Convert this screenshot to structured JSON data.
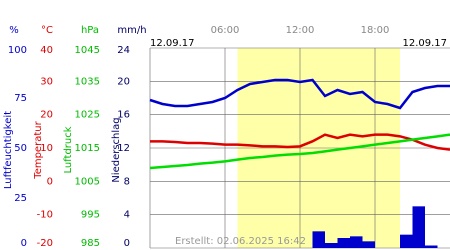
{
  "chart_data": {
    "type": "line",
    "date_left": "12.09.17",
    "date_right": "12.09.17",
    "footer": "Erstellt: 02.06.2025 16:42",
    "axis_units": [
      "%",
      "°C",
      "hPa",
      "mm/h"
    ],
    "axis_titles": [
      "Luftfeuchtigkeit",
      "Temperatur",
      "Luftdruck",
      "Niederschlag"
    ],
    "axis_colors": [
      "#0000cc",
      "#dd0000",
      "#00bb00",
      "#000066"
    ],
    "highlight": [
      7,
      20
    ],
    "highlight_color": "#ffffa8",
    "grid": true,
    "xlim": [
      0,
      24
    ],
    "xticks": [
      {
        "value": 6,
        "label": "06:00"
      },
      {
        "value": 12,
        "label": "12:00"
      },
      {
        "value": 18,
        "label": "18:00"
      }
    ],
    "ylim": [
      0,
      100
    ],
    "yticks": [
      0,
      25,
      50,
      75,
      100
    ],
    "y2lim": [
      -20,
      40
    ],
    "y2ticks": [
      -20,
      -10,
      0,
      10,
      20,
      30,
      40
    ],
    "y3lim": [
      985,
      1045
    ],
    "y3ticks": [
      985,
      995,
      1005,
      1015,
      1025,
      1035,
      1045
    ],
    "y4lim": [
      0,
      24
    ],
    "y4ticks": [
      0,
      4,
      8,
      12,
      16,
      20,
      24
    ],
    "x": [
      0,
      1,
      2,
      3,
      4,
      5,
      6,
      7,
      8,
      9,
      10,
      11,
      12,
      13,
      14,
      15,
      16,
      17,
      18,
      19,
      20,
      21,
      22,
      23,
      24
    ],
    "series": [
      {
        "axis": "y4",
        "type": "bar",
        "color": "#0000cc",
        "values": [
          0,
          0,
          0,
          0,
          0,
          0,
          0,
          0,
          0,
          0,
          0,
          0,
          0,
          2.0,
          0.6,
          1.2,
          1.4,
          0.8,
          0,
          0,
          1.6,
          5.0,
          0.3,
          0,
          0
        ]
      },
      {
        "axis": "y",
        "type": "line",
        "color": "#0000cc",
        "values": [
          74,
          72,
          71,
          71,
          72,
          73,
          75,
          79,
          82,
          83,
          84,
          84,
          83,
          84,
          76,
          79,
          77,
          78,
          73,
          72,
          70,
          78,
          80,
          81,
          81
        ]
      },
      {
        "axis": "y2",
        "type": "line",
        "color": "#dd0000",
        "values": [
          12,
          12,
          11.8,
          11.5,
          11.5,
          11.3,
          11,
          11,
          10.8,
          10.5,
          10.5,
          10.3,
          10.5,
          12,
          14,
          13,
          14,
          13.5,
          14,
          14,
          13.5,
          12.5,
          11,
          10,
          9.5
        ]
      },
      {
        "axis": "y3",
        "type": "line",
        "color": "#00dd00",
        "values": [
          1009,
          1009.3,
          1009.6,
          1009.9,
          1010.3,
          1010.6,
          1011,
          1011.5,
          1012,
          1012.3,
          1012.7,
          1013,
          1013.2,
          1013.5,
          1014,
          1014.5,
          1015,
          1015.5,
          1016,
          1016.5,
          1017,
          1017.5,
          1018,
          1018.5,
          1019
        ]
      }
    ]
  }
}
